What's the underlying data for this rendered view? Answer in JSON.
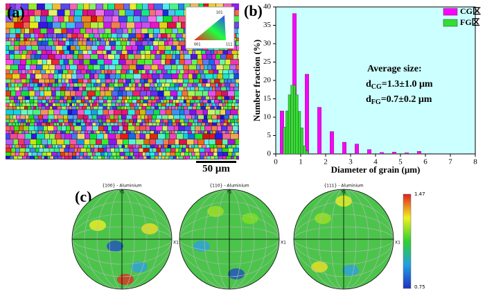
{
  "panel_a": {
    "label": "(a)",
    "scale_bar": "50 μm",
    "ipf_labels": [
      "001",
      "101",
      "111"
    ]
  },
  "chart_data": {
    "type": "histogram",
    "label": "(b)",
    "xlabel": "Diameter of grain (μm)",
    "ylabel": "Number fraction (%)",
    "xlim": [
      0,
      8
    ],
    "xticks": [
      0,
      1,
      2,
      3,
      4,
      5,
      6,
      7,
      8
    ],
    "ylim": [
      0,
      40
    ],
    "yticks": [
      0,
      5,
      10,
      15,
      20,
      25,
      30,
      35,
      40
    ],
    "legend": "upper right",
    "series": [
      {
        "name": "CG区",
        "color": "#ff00ff",
        "bins": [
          0,
          0.5,
          1,
          1.5,
          2,
          2.5,
          3,
          3.5,
          4,
          4.5,
          5,
          5.5,
          6,
          6.5,
          7,
          7.5,
          8
        ],
        "values": [
          11.7,
          38.2,
          21.7,
          12.7,
          6.1,
          3.2,
          2.7,
          1.2,
          0.4,
          0.5,
          0.3,
          0.7,
          0.1,
          0,
          0,
          0.1
        ]
      },
      {
        "name": "FG区",
        "color": "#33dd33",
        "bins": [
          0.3,
          0.4,
          0.5,
          0.6,
          0.7,
          0.8,
          0.9,
          1,
          1.1,
          1.2,
          1.3
        ],
        "values": [
          7.3,
          11.7,
          16.1,
          18.7,
          18.7,
          16.1,
          11.6,
          7.1,
          2.2,
          0.8
        ]
      }
    ],
    "annotations": {
      "heading": "Average size:",
      "lines": [
        {
          "symbol": "d",
          "subscript": "CG",
          "text": "=1.3±1.0 μm"
        },
        {
          "symbol": "d",
          "subscript": "FG",
          "text": "=0.7±0.2 μm"
        }
      ]
    }
  },
  "panel_c": {
    "label": "(c)",
    "pole_figures": [
      {
        "title": "{100} - Aluminium"
      },
      {
        "title": "{110} - Aluminium"
      },
      {
        "title": "{111} - Aluminium"
      }
    ],
    "axis_labels": {
      "y": "Y1",
      "x": "X1"
    },
    "colorbar": {
      "max": 1.47,
      "min": 0.75
    }
  }
}
